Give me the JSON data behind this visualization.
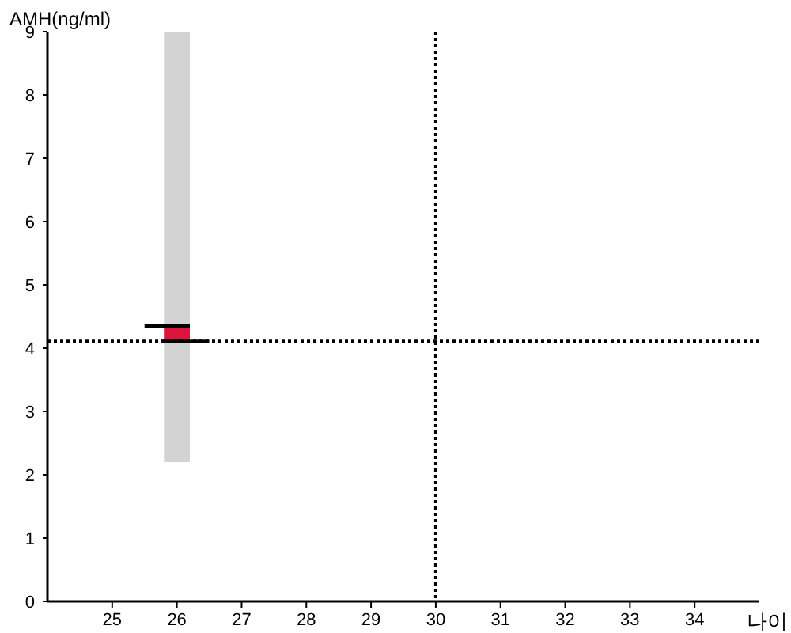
{
  "chart_data": {
    "type": "bar",
    "xlabel": "나이",
    "ylabel": "AMH(ng/ml)",
    "xlim": [
      24,
      35
    ],
    "xticks": [
      25,
      26,
      27,
      28,
      29,
      30,
      31,
      32,
      33,
      34
    ],
    "ylim": [
      0,
      9
    ],
    "yticks": [
      0,
      1,
      2,
      3,
      4,
      5,
      6,
      7,
      8,
      9
    ],
    "series": [
      {
        "color": "#d3d3d3",
        "x": [
          26
        ],
        "base": [
          2.2
        ],
        "values": [
          6.8
        ]
      },
      {
        "color": "#dc143c",
        "x": [
          26
        ],
        "base": [
          4.11
        ],
        "values": [
          0.23
        ]
      },
      {
        "type": "line",
        "color": "#000000",
        "x": [
          25.5,
          26.2
        ],
        "values": [
          4.35,
          4.35
        ]
      },
      {
        "type": "line",
        "color": "#000000",
        "x": [
          25.75,
          26.5
        ],
        "values": [
          4.11,
          4.11
        ]
      }
    ],
    "ref_lines": [
      {
        "axis": "y",
        "value": 4.11,
        "line_style": "dotted",
        "color": "#000000"
      },
      {
        "axis": "x",
        "value": 30,
        "line_style": "dotted",
        "color": "#000000"
      }
    ]
  }
}
